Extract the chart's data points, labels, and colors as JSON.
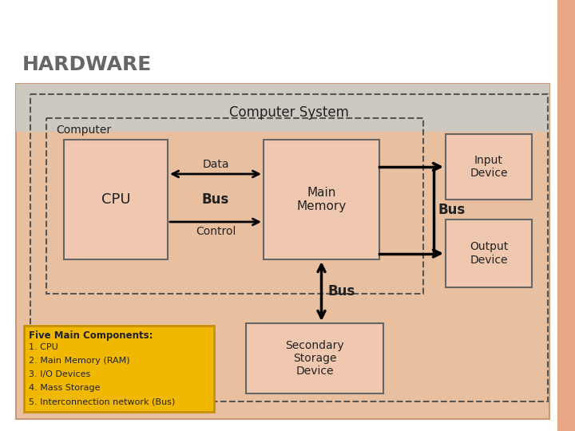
{
  "title": "HARDWARE",
  "title_color": "#666666",
  "title_fontsize": 18,
  "slide_bg": "#ffffff",
  "right_accent_color": "#e8a888",
  "content_bg": "#e8c4b0",
  "content_bg_top": "#d8d0cc",
  "box_fill": "#f0c8b0",
  "box_edge": "#666666",
  "dashed_edge": "#555555",
  "yellow_fill": "#f0b800",
  "yellow_edge": "#c89000",
  "comp_system_label": "Computer System",
  "computer_label": "Computer",
  "cpu_label": "CPU",
  "main_mem_label": "Main\nMemory",
  "input_dev_label": "Input\nDevice",
  "output_dev_label": "Output\nDevice",
  "secondary_label": "Secondary\nStorage\nDevice",
  "data_label": "Data",
  "bus_label1": "Bus",
  "control_label": "Control",
  "bus_label2": "Bus",
  "bus_label3": "Bus",
  "five_title": "Five Main Components:",
  "five_items": [
    "1. CPU",
    "2. Main Memory (RAM)",
    "3. I/O Devices",
    "4. Mass Storage",
    "5. Interconnection network (Bus)"
  ]
}
